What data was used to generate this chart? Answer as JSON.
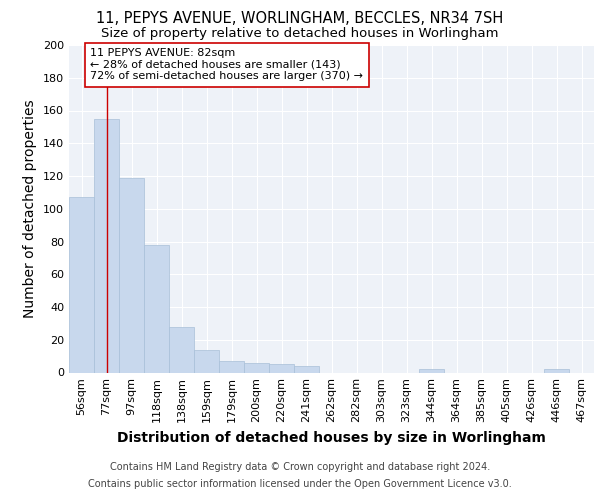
{
  "title": "11, PEPYS AVENUE, WORLINGHAM, BECCLES, NR34 7SH",
  "subtitle": "Size of property relative to detached houses in Worlingham",
  "xlabel": "Distribution of detached houses by size in Worlingham",
  "ylabel": "Number of detached properties",
  "categories": [
    "56sqm",
    "77sqm",
    "97sqm",
    "118sqm",
    "138sqm",
    "159sqm",
    "179sqm",
    "200sqm",
    "220sqm",
    "241sqm",
    "262sqm",
    "282sqm",
    "303sqm",
    "323sqm",
    "344sqm",
    "364sqm",
    "385sqm",
    "405sqm",
    "426sqm",
    "446sqm",
    "467sqm"
  ],
  "values": [
    107,
    155,
    119,
    78,
    28,
    14,
    7,
    6,
    5,
    4,
    0,
    0,
    0,
    0,
    2,
    0,
    0,
    0,
    0,
    2,
    0
  ],
  "bar_color": "#c8d8ed",
  "bar_edge_color": "#a8bfd8",
  "vline_x": 1,
  "vline_color": "#cc0000",
  "annotation_box_text": "11 PEPYS AVENUE: 82sqm\n← 28% of detached houses are smaller (143)\n72% of semi-detached houses are larger (370) →",
  "annotation_box_color": "#ffffff",
  "annotation_box_edge_color": "#cc0000",
  "footer_line1": "Contains HM Land Registry data © Crown copyright and database right 2024.",
  "footer_line2": "Contains public sector information licensed under the Open Government Licence v3.0.",
  "ylim": [
    0,
    200
  ],
  "yticks": [
    0,
    20,
    40,
    60,
    80,
    100,
    120,
    140,
    160,
    180,
    200
  ],
  "background_color": "#eef2f8",
  "grid_color": "#ffffff",
  "title_fontsize": 10.5,
  "subtitle_fontsize": 9.5,
  "axis_label_fontsize": 10,
  "tick_fontsize": 8,
  "footer_fontsize": 7.0
}
